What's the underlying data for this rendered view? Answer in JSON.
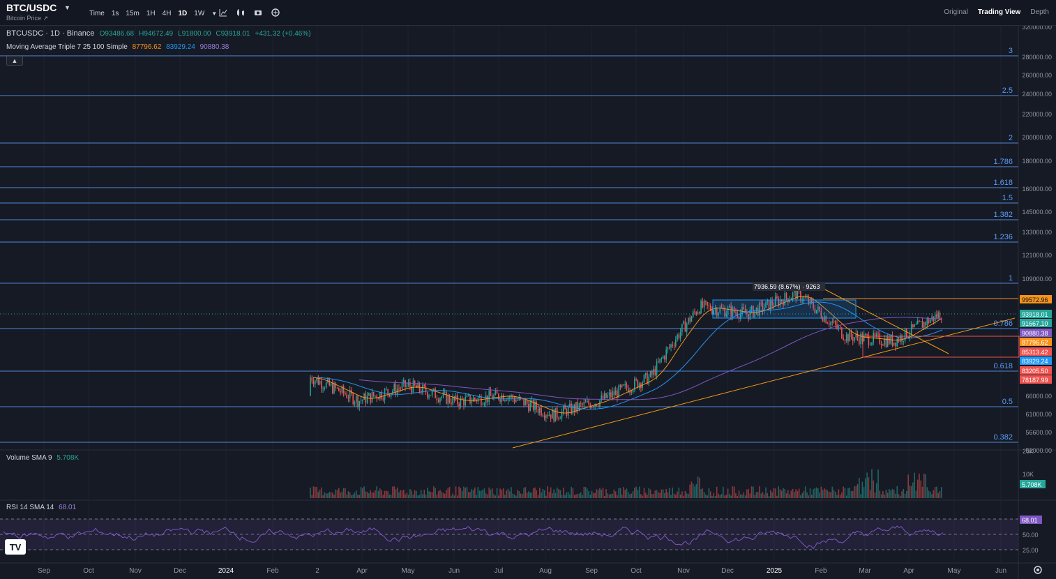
{
  "header": {
    "symbol": "BTC/USDC",
    "subtitle": "Bitcoin Price",
    "subtitle_arrow": "↗",
    "timeframes": [
      "Time",
      "1s",
      "15m",
      "1H",
      "4H",
      "1D",
      "1W"
    ],
    "active_timeframe": "1D",
    "views": [
      "Original",
      "Trading View",
      "Depth"
    ],
    "active_view": "Trading View"
  },
  "legend": {
    "title": "BTCUSDC · 1D · Binance",
    "open": "O93486.68",
    "high": "H94672.49",
    "low": "L91800.00",
    "close": "C93918.01",
    "change": "+431.32 (+0.46%)",
    "ma_label": "Moving Average Triple 7 25 100 Simple",
    "ma7": "87796.62",
    "ma25": "83929.24",
    "ma100": "90880.38",
    "volume_label": "Volume SMA 9",
    "volume_value": "5.708K",
    "rsi_label": "RSI 14 SMA 14",
    "rsi_value": "68.01",
    "collapse_icon": "chevron-up-icon",
    "logo": "TV"
  },
  "colors": {
    "background": "#161a25",
    "up": "#26a69a",
    "down": "#ef5350",
    "fib": "#5b9cf6",
    "ma7": "#f7931a",
    "ma25": "#2196f3",
    "ma100": "#7e57c2",
    "trend": "#f39c12",
    "rsi": "#7e57c2"
  },
  "price_axis": [
    "320000.00",
    "280000.00",
    "260000.00",
    "240000.00",
    "220000.00",
    "200000.00",
    "180000.00",
    "160000.00",
    "145000.00",
    "133000.00",
    "121000.00",
    "109000.00",
    "66000.00",
    "61000.00",
    "56600.00",
    "52000.00"
  ],
  "fib_levels": [
    {
      "label": "3",
      "price": 280000
    },
    {
      "label": "2.5",
      "price": 240000
    },
    {
      "label": "2",
      "price": 195000
    },
    {
      "label": "1.786",
      "price": 176000
    },
    {
      "label": "1.618",
      "price": 160000
    },
    {
      "label": "1.5",
      "price": 149000
    },
    {
      "label": "1.382",
      "price": 138000
    },
    {
      "label": "1.236",
      "price": 124000
    },
    {
      "label": "1",
      "price": 108000
    },
    {
      "label": "0.786",
      "price": 91800
    },
    {
      "label": "0.618",
      "price": 74000
    },
    {
      "label": "0.5",
      "price": 62800
    },
    {
      "label": "0.382",
      "price": 52000
    }
  ],
  "price_tags": [
    {
      "value": "99572.96",
      "color": "#f7931a",
      "text": "#131722"
    },
    {
      "value": "93918.01",
      "color": "#26a69a",
      "text": "#ffffff"
    },
    {
      "value": "91667.10",
      "color": "#26a69a",
      "text": "#ffffff"
    },
    {
      "value": "90880.38",
      "color": "#7e57c2",
      "text": "#ffffff"
    },
    {
      "value": "87796.62",
      "color": "#f7931a",
      "text": "#ffffff"
    },
    {
      "value": "85313.42",
      "color": "#ef5350",
      "text": "#ffffff"
    },
    {
      "value": "83929.24",
      "color": "#2196f3",
      "text": "#ffffff"
    },
    {
      "value": "83205.50",
      "color": "#ef5350",
      "text": "#ffffff"
    },
    {
      "value": "78187.99",
      "color": "#ef5350",
      "text": "#ffffff"
    }
  ],
  "range_label": "7936.59 (8.67%) · 9263",
  "volume_axis": [
    "20K",
    "10K"
  ],
  "volume_tag": "5.708K",
  "rsi_axis": [
    "75.00",
    "50.00",
    "25.00"
  ],
  "rsi_tag": "68.01",
  "time_axis": [
    "Sep",
    "Oct",
    "Nov",
    "Dec",
    "2024",
    "Feb",
    "2",
    "Apr",
    "May",
    "Jun",
    "Jul",
    "Aug",
    "Sep",
    "Oct",
    "Nov",
    "Dec",
    "2025",
    "Feb",
    "Mar",
    "Apr",
    "May",
    "Jun"
  ],
  "chart_data": {
    "type": "candlestick",
    "series": [
      {
        "name": "BTCUSDC",
        "approx_monthly_closes": [
          {
            "month": "Mar 2024",
            "close": 70000
          },
          {
            "month": "Apr 2024",
            "close": 63000
          },
          {
            "month": "May 2024",
            "close": 67500
          },
          {
            "month": "Jun 2024",
            "close": 62700
          },
          {
            "month": "Jul 2024",
            "close": 64600
          },
          {
            "month": "Aug 2024",
            "close": 59000
          },
          {
            "month": "Sep 2024",
            "close": 63300
          },
          {
            "month": "Oct 2024",
            "close": 70200
          },
          {
            "month": "Nov 2024",
            "close": 96400
          },
          {
            "month": "Dec 2024",
            "close": 93400
          },
          {
            "month": "Jan 2025",
            "close": 102400
          },
          {
            "month": "Feb 2025",
            "close": 84300
          },
          {
            "month": "Mar 2025",
            "close": 82500
          },
          {
            "month": "Apr 2025",
            "close": 93918
          }
        ]
      }
    ]
  }
}
